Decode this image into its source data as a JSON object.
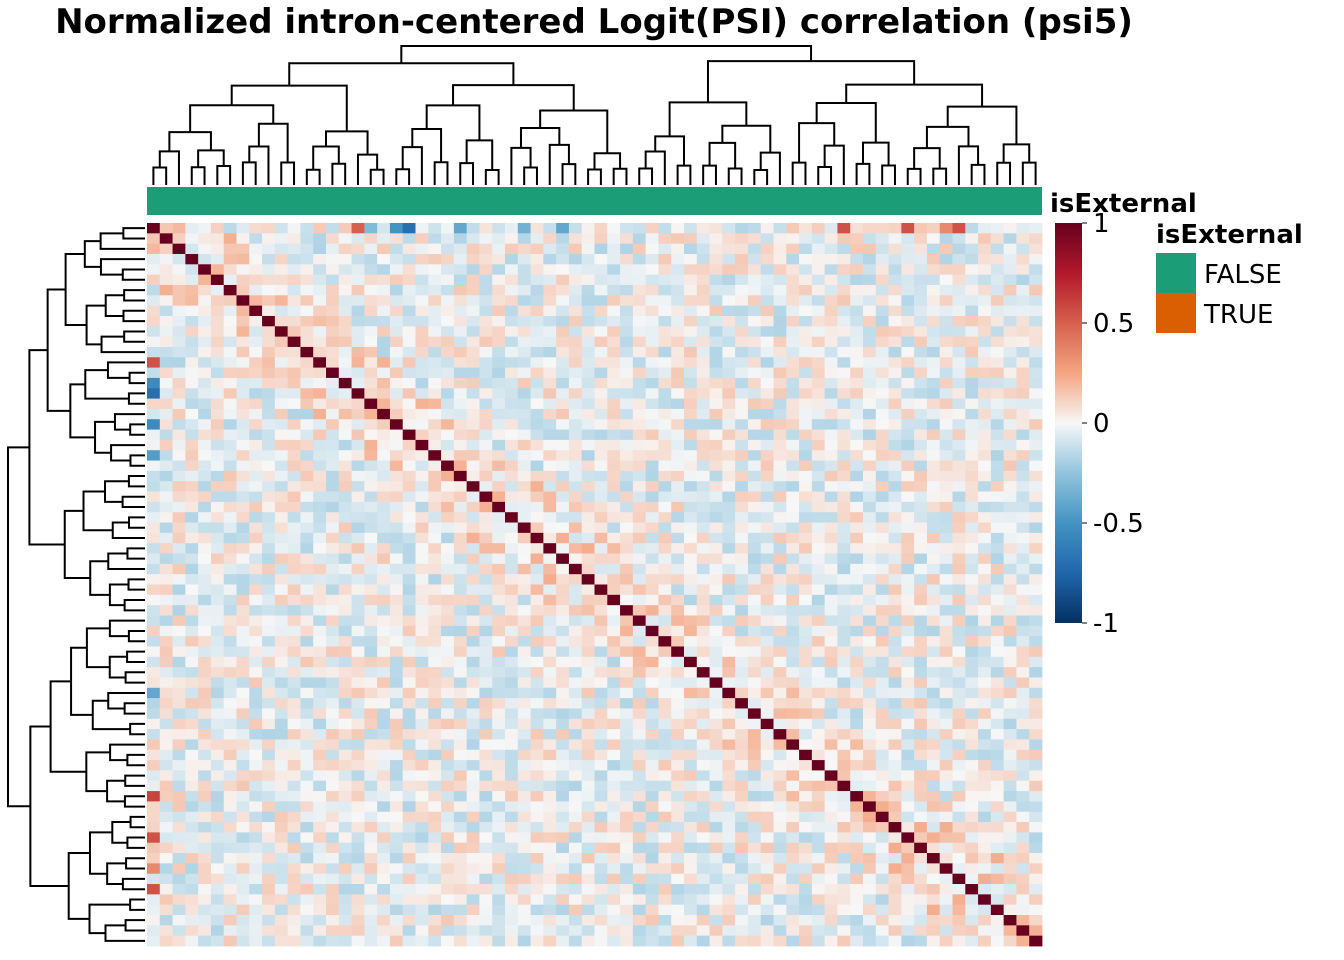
{
  "chart_data": {
    "type": "heatmap",
    "title": "Normalized intron-centered Logit(PSI) correlation (psi5)",
    "n_samples": 70,
    "diagonal_value": 1,
    "value_range": [
      -1,
      1
    ],
    "colorbar": {
      "ticks": [
        1,
        0.5,
        0,
        -0.5,
        -1
      ],
      "tick_labels": [
        "1",
        "0.5",
        "0",
        "-0.5",
        "-1"
      ]
    },
    "annotation": {
      "name": "isExternal",
      "column_value": "FALSE",
      "levels": [
        {
          "label": "FALSE",
          "color": "#1B9E77"
        },
        {
          "label": "TRUE",
          "color": "#D95F02"
        }
      ]
    },
    "row_dendrogram": true,
    "column_dendrogram": true,
    "first_column_highlights": [
      {
        "row": 13,
        "value": 0.55
      },
      {
        "row": 15,
        "value": -0.55
      },
      {
        "row": 16,
        "value": -0.7
      },
      {
        "row": 19,
        "value": -0.55
      },
      {
        "row": 22,
        "value": -0.45
      },
      {
        "row": 45,
        "value": -0.4
      },
      {
        "row": 55,
        "value": 0.6
      },
      {
        "row": 59,
        "value": 0.55
      },
      {
        "row": 62,
        "value": 0.35
      },
      {
        "row": 64,
        "value": 0.55
      }
    ],
    "first_row_highlights": [
      {
        "col": 16,
        "value": 0.5
      },
      {
        "col": 17,
        "value": -0.3
      },
      {
        "col": 19,
        "value": -0.5
      },
      {
        "col": 20,
        "value": -0.7
      },
      {
        "col": 24,
        "value": -0.4
      },
      {
        "col": 29,
        "value": -0.35
      },
      {
        "col": 32,
        "value": -0.4
      },
      {
        "col": 54,
        "value": 0.55
      },
      {
        "col": 59,
        "value": 0.55
      },
      {
        "col": 62,
        "value": 0.35
      },
      {
        "col": 63,
        "value": 0.55
      }
    ]
  }
}
